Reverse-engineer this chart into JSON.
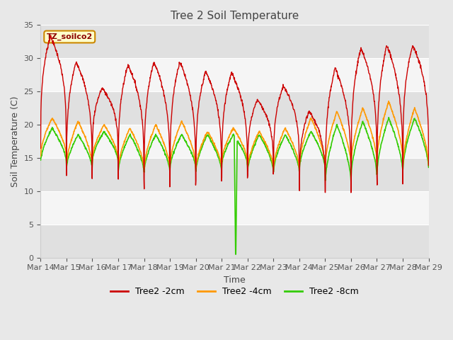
{
  "title": "Tree 2 Soil Temperature",
  "ylabel": "Soil Temperature (C)",
  "xlabel": "Time",
  "legend_label": "TZ_soilco2",
  "line_labels": [
    "Tree2 -2cm",
    "Tree2 -4cm",
    "Tree2 -8cm"
  ],
  "line_colors": [
    "#cc0000",
    "#ff9900",
    "#33cc00"
  ],
  "ylim": [
    0,
    35
  ],
  "yticks": [
    0,
    5,
    10,
    15,
    20,
    25,
    30,
    35
  ],
  "xtick_labels": [
    "Mar 14",
    "Mar 15",
    "Mar 16",
    "Mar 17",
    "Mar 18",
    "Mar 19",
    "Mar 20",
    "Mar 21",
    "Mar 22",
    "Mar 23",
    "Mar 24",
    "Mar 25",
    "Mar 26",
    "Mar 27",
    "Mar 28",
    "Mar 29"
  ],
  "bg_color": "#e8e8e8",
  "plot_bg_light": "#f5f5f5",
  "plot_bg_dark": "#e0e0e0",
  "n_days": 15,
  "points_per_day": 96,
  "red_peaks": [
    33.3,
    29.5,
    25.5,
    29.0,
    29.5,
    29.5,
    28.0,
    27.8,
    23.8,
    25.8,
    22.0,
    28.5,
    31.5,
    32.0,
    32.0
  ],
  "red_troughs": [
    16.2,
    12.0,
    15.0,
    12.0,
    10.8,
    11.0,
    11.5,
    12.0,
    12.5,
    13.0,
    10.0,
    9.8,
    12.5,
    11.0,
    14.0
  ],
  "ora_peaks": [
    21.0,
    20.5,
    20.0,
    19.5,
    20.0,
    20.5,
    19.0,
    19.5,
    19.0,
    19.5,
    21.0,
    22.0,
    22.5,
    23.5,
    22.5
  ],
  "ora_troughs": [
    15.5,
    14.0,
    15.0,
    13.5,
    13.5,
    14.0,
    13.5,
    14.5,
    13.5,
    13.5,
    14.0,
    14.0,
    14.5,
    15.0,
    14.0
  ],
  "grn_peaks": [
    19.5,
    18.5,
    19.0,
    18.5,
    18.5,
    18.5,
    18.5,
    18.5,
    18.5,
    18.5,
    19.0,
    20.0,
    20.5,
    21.0,
    21.0
  ],
  "grn_troughs": [
    14.5,
    13.5,
    14.5,
    13.0,
    13.0,
    13.5,
    13.0,
    14.0,
    13.0,
    13.0,
    13.5,
    11.5,
    12.5,
    13.0,
    13.5
  ],
  "green_spike_day": 7.48,
  "green_spike_val": 0.5
}
